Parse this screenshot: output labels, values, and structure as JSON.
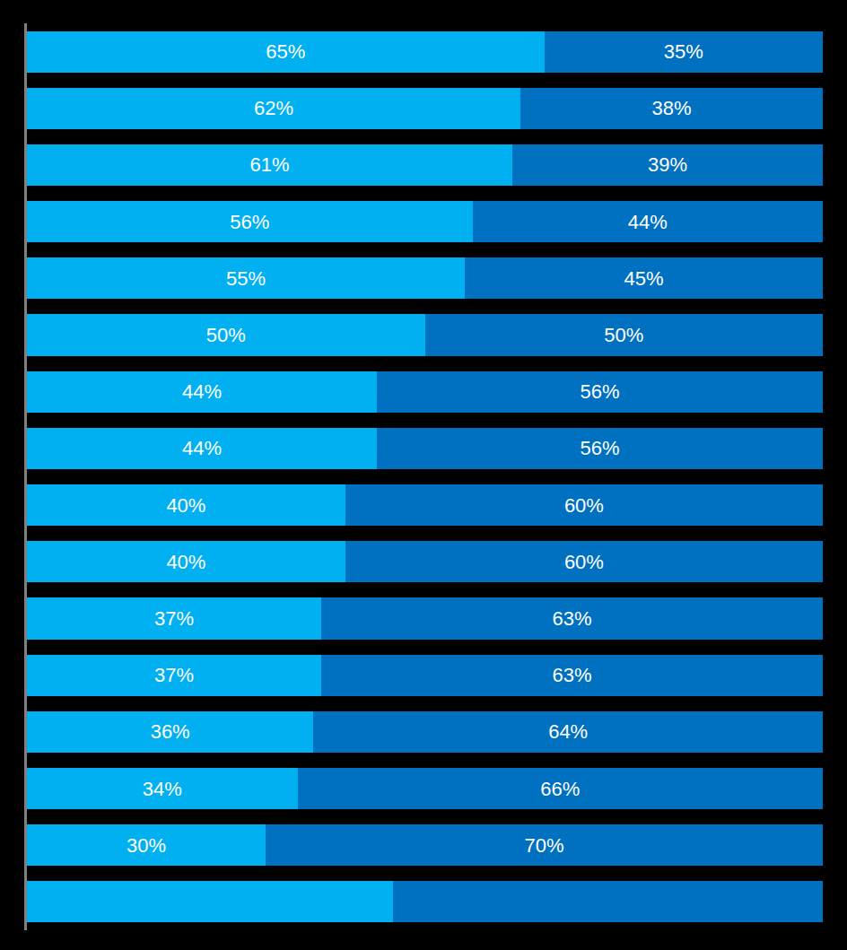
{
  "chart_data": {
    "type": "bar",
    "orientation": "horizontal",
    "stacked": true,
    "data_labels": true,
    "tick_labels": false,
    "grid": false,
    "categories": [
      null,
      null,
      null,
      null,
      null,
      null,
      null,
      null,
      null,
      null,
      null,
      null,
      null,
      null,
      null,
      null
    ],
    "xlim": [
      0,
      100
    ],
    "series": [
      {
        "color": "#00b0f0",
        "values": [
          65,
          62,
          61,
          56,
          55,
          50,
          44,
          44,
          40,
          40,
          37,
          37,
          36,
          34,
          30,
          46
        ],
        "value_labels": [
          "65%",
          "62%",
          "61%",
          "56%",
          "55%",
          "50%",
          "44%",
          "44%",
          "40%",
          "40%",
          "37%",
          "37%",
          "36%",
          "34%",
          "30%",
          null
        ]
      },
      {
        "color": "#0070c0",
        "values": [
          35,
          38,
          39,
          44,
          45,
          50,
          56,
          56,
          60,
          60,
          63,
          63,
          64,
          66,
          70,
          54
        ],
        "value_labels": [
          "35%",
          "38%",
          "39%",
          "44%",
          "45%",
          "50%",
          "56%",
          "56%",
          "60%",
          "60%",
          "63%",
          "63%",
          "64%",
          "66%",
          "70%",
          null
        ]
      }
    ]
  }
}
